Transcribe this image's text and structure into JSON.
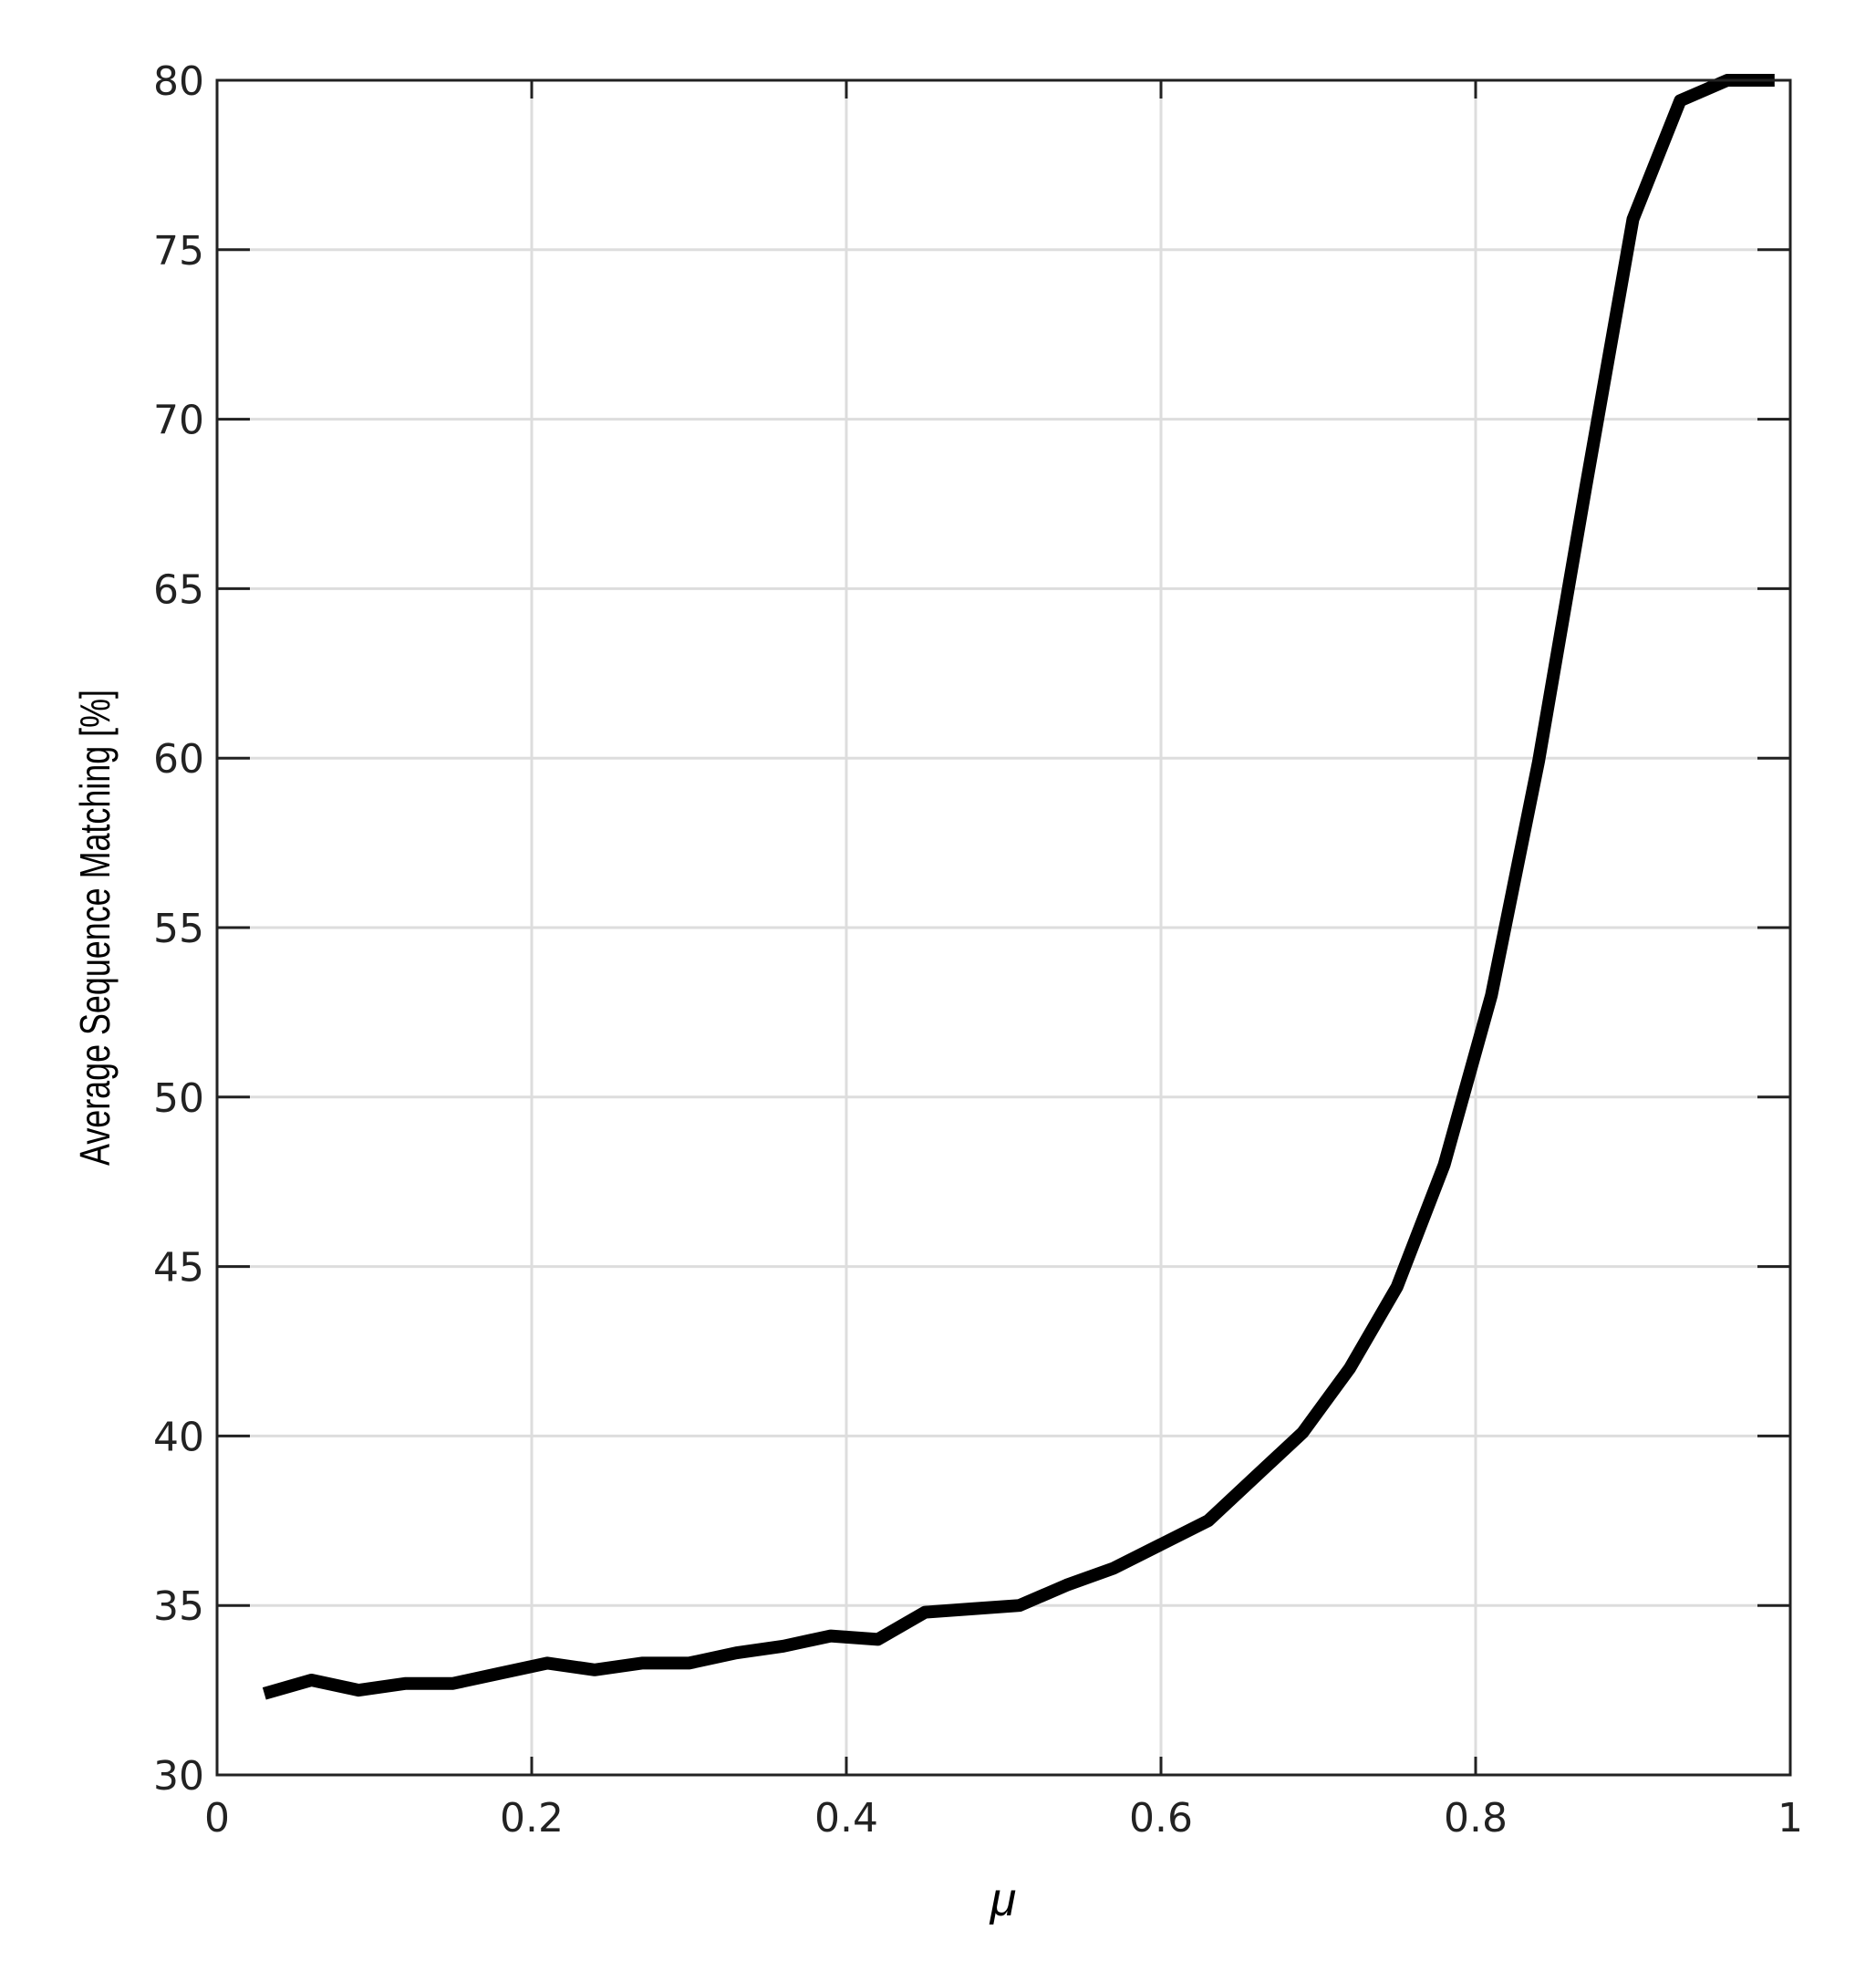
{
  "chart_data": {
    "type": "line",
    "title": "",
    "xlabel": "μ",
    "ylabel": "Average Sequence Matching [%]",
    "xlim": [
      0,
      1
    ],
    "ylim": [
      30,
      80
    ],
    "x_ticks": [
      "0",
      "0.2",
      "0.4",
      "0.6",
      "0.8",
      "1"
    ],
    "y_ticks": [
      "30",
      "35",
      "40",
      "45",
      "50",
      "55",
      "60",
      "65",
      "70",
      "75",
      "80"
    ],
    "x_tick_values": [
      0,
      0.2,
      0.4,
      0.6,
      0.8,
      1
    ],
    "y_tick_values": [
      30,
      35,
      40,
      45,
      50,
      55,
      60,
      65,
      70,
      75,
      80
    ],
    "grid": true,
    "line_color": "#000000",
    "grid_color": "#dddddd",
    "series": [
      {
        "x": [
          0.03,
          0.06,
          0.09,
          0.12,
          0.15,
          0.18,
          0.21,
          0.24,
          0.27,
          0.3,
          0.33,
          0.36,
          0.39,
          0.42,
          0.45,
          0.48,
          0.51,
          0.54,
          0.57,
          0.6,
          0.63,
          0.66,
          0.69,
          0.72,
          0.75,
          0.78,
          0.81,
          0.84,
          0.87,
          0.9,
          0.93,
          0.96,
          0.99
        ],
        "y": [
          32.4,
          32.8,
          32.5,
          32.7,
          32.7,
          33.0,
          33.3,
          33.1,
          33.3,
          33.3,
          33.6,
          33.8,
          34.1,
          34.0,
          34.8,
          34.9,
          35.0,
          35.6,
          36.1,
          36.8,
          37.5,
          38.8,
          40.1,
          42.0,
          44.4,
          48.0,
          53.0,
          59.9,
          68.0,
          75.9,
          79.4,
          80.0,
          80.0
        ]
      }
    ]
  }
}
